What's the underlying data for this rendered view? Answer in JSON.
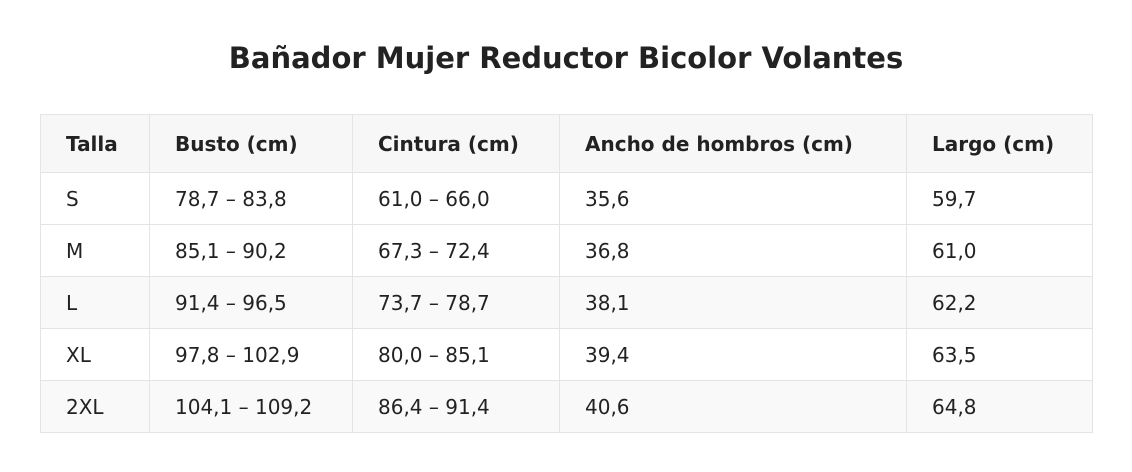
{
  "title": "Bañador Mujer Reductor Bicolor Volantes",
  "table": {
    "headers": [
      "Talla",
      "Busto (cm)",
      "Cintura (cm)",
      "Ancho de hombros (cm)",
      "Largo (cm)"
    ],
    "rows": [
      [
        "S",
        "78,7 – 83,8",
        "61,0 – 66,0",
        "35,6",
        "59,7"
      ],
      [
        "M",
        "85,1 – 90,2",
        "67,3 – 72,4",
        "36,8",
        "61,0"
      ],
      [
        "L",
        "91,4 – 96,5",
        "73,7 – 78,7",
        "38,1",
        "62,2"
      ],
      [
        "XL",
        "97,8 – 102,9",
        "80,0 – 85,1",
        "39,4",
        "63,5"
      ],
      [
        "2XL",
        "104,1 – 109,2",
        "86,4 – 91,4",
        "40,6",
        "64,8"
      ]
    ]
  },
  "colors": {
    "text": "#222222",
    "header_bg": "#f7f7f7",
    "alt_row_bg": "#f9f9f9",
    "border": "#e4e4e4"
  }
}
